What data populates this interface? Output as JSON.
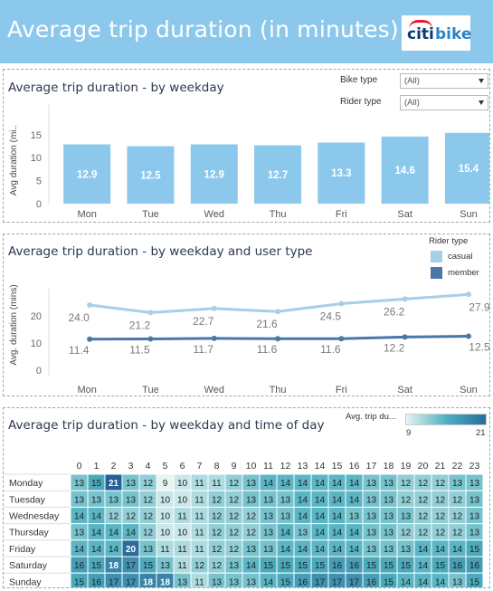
{
  "header": {
    "title": "Average trip duration (in minutes)",
    "logo_citi": "citi",
    "logo_bike": "bike"
  },
  "panel1": {
    "title": "Average trip duration - by weekday",
    "filters": [
      {
        "label": "Bike type",
        "value": "(All)"
      },
      {
        "label": "Rider type",
        "value": "(All)"
      }
    ]
  },
  "panel2": {
    "title": "Average trip duration - by weekday and user type",
    "legend_title": "Rider type",
    "legend": [
      {
        "label": "casual",
        "color": "#a6cfe8"
      },
      {
        "label": "member",
        "color": "#4a76a8"
      }
    ]
  },
  "panel3": {
    "title": "Average trip duration - by weekday and time of day",
    "legend_title": "Avg. trip du...",
    "legend_min": "9",
    "legend_max": "21"
  },
  "chart_data": [
    {
      "type": "bar",
      "categories": [
        "Mon",
        "Tue",
        "Wed",
        "Thu",
        "Fri",
        "Sat",
        "Sun"
      ],
      "values": [
        12.9,
        12.5,
        12.9,
        12.7,
        13.3,
        14.6,
        15.4
      ],
      "ylabel": "Avg duration (mi..",
      "yticks": [
        0,
        5,
        10,
        15
      ],
      "ylim": [
        0,
        16
      ],
      "color": "#8cc8ec"
    },
    {
      "type": "line",
      "categories": [
        "Mon",
        "Tue",
        "Wed",
        "Thu",
        "Fri",
        "Sat",
        "Sun"
      ],
      "series": [
        {
          "name": "casual",
          "values": [
            24.0,
            21.2,
            22.7,
            21.6,
            24.5,
            26.2,
            27.9
          ],
          "color": "#a6cfe8"
        },
        {
          "name": "member",
          "values": [
            11.4,
            11.5,
            11.7,
            11.6,
            11.6,
            12.2,
            12.5
          ],
          "color": "#4a76a8"
        }
      ],
      "ylabel": "Avg. duration (mins)",
      "yticks": [
        0,
        10,
        20
      ],
      "ylim": [
        0,
        30
      ]
    },
    {
      "type": "heatmap",
      "columns": [
        "0",
        "1",
        "2",
        "3",
        "4",
        "5",
        "6",
        "7",
        "8",
        "9",
        "10",
        "11",
        "12",
        "13",
        "14",
        "15",
        "16",
        "17",
        "18",
        "19",
        "20",
        "21",
        "22",
        "23"
      ],
      "rows": [
        "Monday",
        "Tuesday",
        "Wednesday",
        "Thursday",
        "Friday",
        "Saturday",
        "Sunday"
      ],
      "values": [
        [
          13,
          15,
          21,
          13,
          12,
          9,
          10,
          11,
          11,
          12,
          13,
          14,
          14,
          14,
          14,
          14,
          14,
          13,
          13,
          12,
          12,
          12,
          13,
          13
        ],
        [
          13,
          13,
          13,
          13,
          12,
          10,
          10,
          11,
          12,
          12,
          13,
          13,
          13,
          14,
          14,
          14,
          14,
          13,
          13,
          12,
          12,
          12,
          12,
          13
        ],
        [
          14,
          14,
          12,
          12,
          12,
          10,
          11,
          11,
          12,
          12,
          12,
          13,
          13,
          14,
          14,
          14,
          13,
          13,
          13,
          13,
          12,
          12,
          12,
          13
        ],
        [
          13,
          14,
          14,
          14,
          12,
          10,
          10,
          11,
          12,
          12,
          12,
          13,
          14,
          13,
          14,
          14,
          14,
          13,
          13,
          12,
          12,
          12,
          12,
          13
        ],
        [
          14,
          14,
          14,
          20,
          13,
          11,
          11,
          11,
          12,
          12,
          13,
          13,
          14,
          14,
          14,
          14,
          14,
          13,
          13,
          13,
          14,
          14,
          14,
          15
        ],
        [
          16,
          15,
          18,
          17,
          15,
          13,
          11,
          12,
          12,
          13,
          14,
          15,
          15,
          15,
          15,
          16,
          16,
          15,
          15,
          15,
          14,
          15,
          16,
          16
        ],
        [
          15,
          16,
          17,
          17,
          18,
          18,
          13,
          11,
          13,
          13,
          13,
          14,
          15,
          16,
          17,
          17,
          17,
          16,
          15,
          14,
          14,
          14,
          13,
          15
        ]
      ],
      "color_min": 9,
      "color_max": 21
    }
  ]
}
